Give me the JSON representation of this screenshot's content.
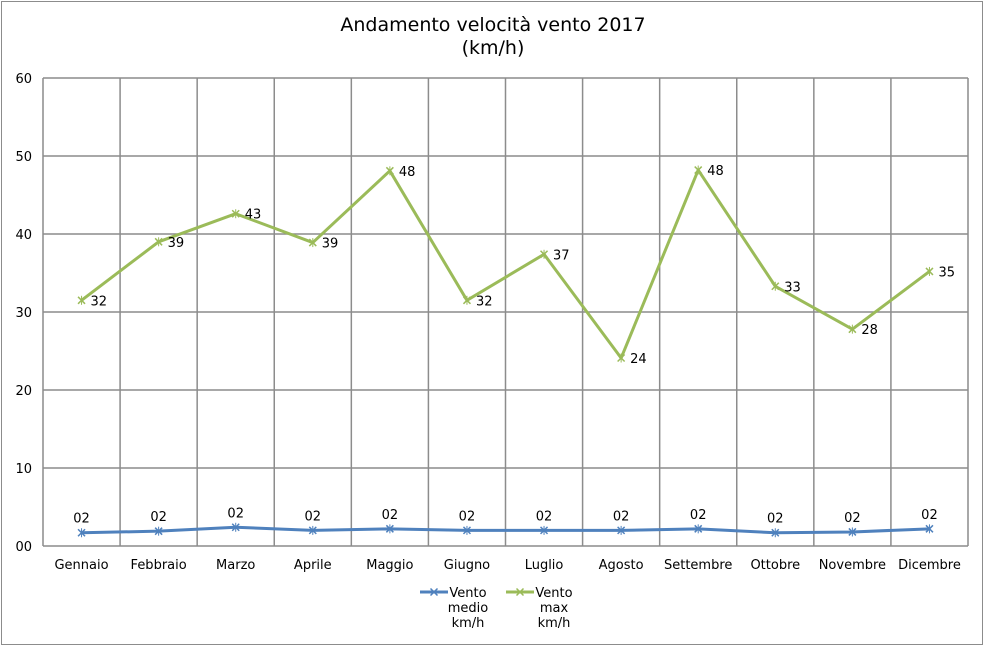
{
  "chart_data": {
    "type": "line",
    "title": "Andamento velocità vento 2017",
    "subtitle": "(km/h)",
    "categories": [
      "Gennaio",
      "Febbraio",
      "Marzo",
      "Aprile",
      "Maggio",
      "Giugno",
      "Luglio",
      "Agosto",
      "Settembre",
      "Ottobre",
      "Novembre",
      "Dicembre"
    ],
    "ylim": [
      0,
      60
    ],
    "yticks": [
      "00",
      "10",
      "20",
      "30",
      "40",
      "50",
      "60"
    ],
    "grid": true,
    "legend_position": "bottom",
    "series": [
      {
        "name": "Vento medio km/h",
        "legend_lines": [
          "Vento",
          "medio",
          "km/h"
        ],
        "color": "#4f81bd",
        "values": [
          1.7,
          1.9,
          2.4,
          2.0,
          2.2,
          2.0,
          2.0,
          2.0,
          2.2,
          1.7,
          1.8,
          2.2
        ],
        "labels": [
          "02",
          "02",
          "02",
          "02",
          "02",
          "02",
          "02",
          "02",
          "02",
          "02",
          "02",
          "02"
        ]
      },
      {
        "name": "Vento max km/h",
        "legend_lines": [
          "Vento",
          "max",
          "km/h"
        ],
        "color": "#9bbb59",
        "values": [
          31.5,
          39.0,
          42.6,
          38.9,
          48.1,
          31.5,
          37.4,
          24.1,
          48.2,
          33.3,
          27.8,
          35.2
        ],
        "labels": [
          "32",
          "39",
          "43",
          "39",
          "48",
          "32",
          "37",
          "24",
          "48",
          "33",
          "28",
          "35"
        ]
      }
    ]
  }
}
